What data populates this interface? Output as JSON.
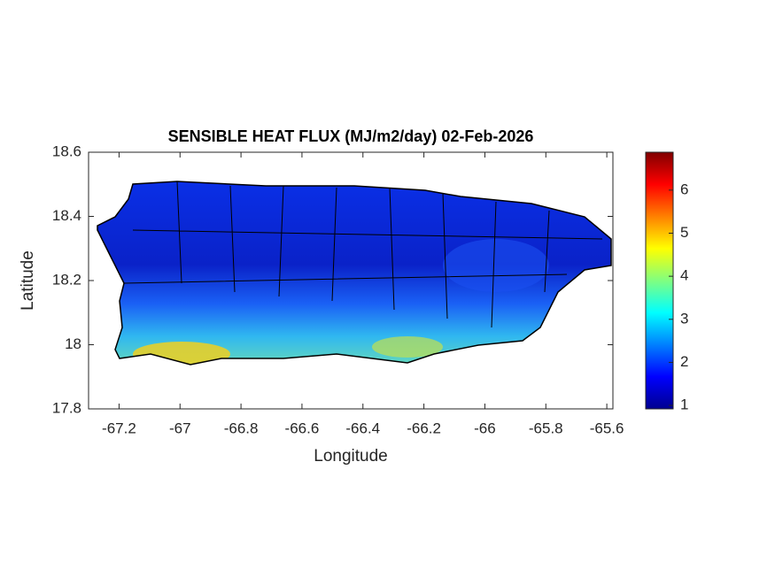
{
  "chart_data": {
    "type": "raster-map",
    "title": "SENSIBLE HEAT FLUX (MJ/m2/day) 02-Feb-2026",
    "x_label": "Longitude",
    "y_label": "Latitude",
    "xlim": [
      -67.3,
      -65.58
    ],
    "ylim": [
      17.8,
      18.6
    ],
    "xticks": [
      -67.2,
      -67,
      -66.8,
      -66.6,
      -66.4,
      -66.2,
      -66,
      -65.8,
      -65.6
    ],
    "yticks": [
      17.8,
      18,
      18.2,
      18.4,
      18.6
    ],
    "clim": [
      0.92,
      6.88
    ],
    "cticks": [
      1,
      2,
      3,
      4,
      5,
      6
    ],
    "colormap": [
      "#00008f",
      "#0000ff",
      "#0080ff",
      "#00ffff",
      "#80ff80",
      "#ffff00",
      "#ff8000",
      "#ff0000",
      "#800000"
    ]
  }
}
